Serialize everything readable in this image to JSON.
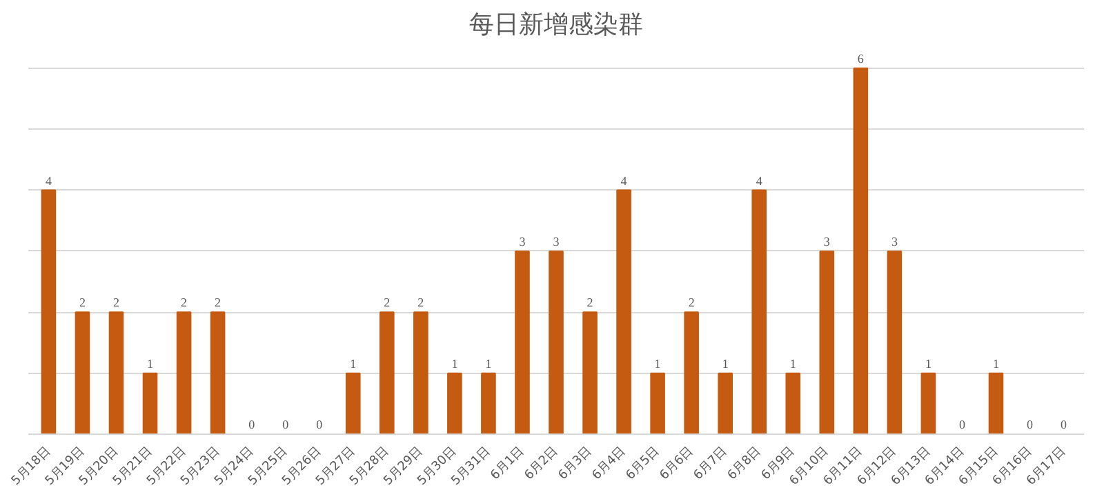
{
  "chart_data": {
    "type": "bar",
    "title": "每日新增感染群",
    "categories": [
      "5月18日",
      "5月19日",
      "5月20日",
      "5月21日",
      "5月22日",
      "5月23日",
      "5月24日",
      "5月25日",
      "5月26日",
      "5月27日",
      "5月28日",
      "5月29日",
      "5月30日",
      "5月31日",
      "6月1日",
      "6月2日",
      "6月3日",
      "6月4日",
      "6月5日",
      "6月6日",
      "6月7日",
      "6月8日",
      "6月9日",
      "6月10日",
      "6月11日",
      "6月12日",
      "6月13日",
      "6月14日",
      "6月15日",
      "6月16日",
      "6月17日"
    ],
    "values": [
      4,
      2,
      2,
      1,
      2,
      2,
      0,
      0,
      0,
      1,
      2,
      2,
      1,
      1,
      3,
      3,
      2,
      4,
      1,
      2,
      1,
      4,
      1,
      3,
      6,
      3,
      1,
      0,
      1,
      0,
      0
    ],
    "color": "#c55a11",
    "tick_labels": "x",
    "grid": "y",
    "data_labels": true
  }
}
